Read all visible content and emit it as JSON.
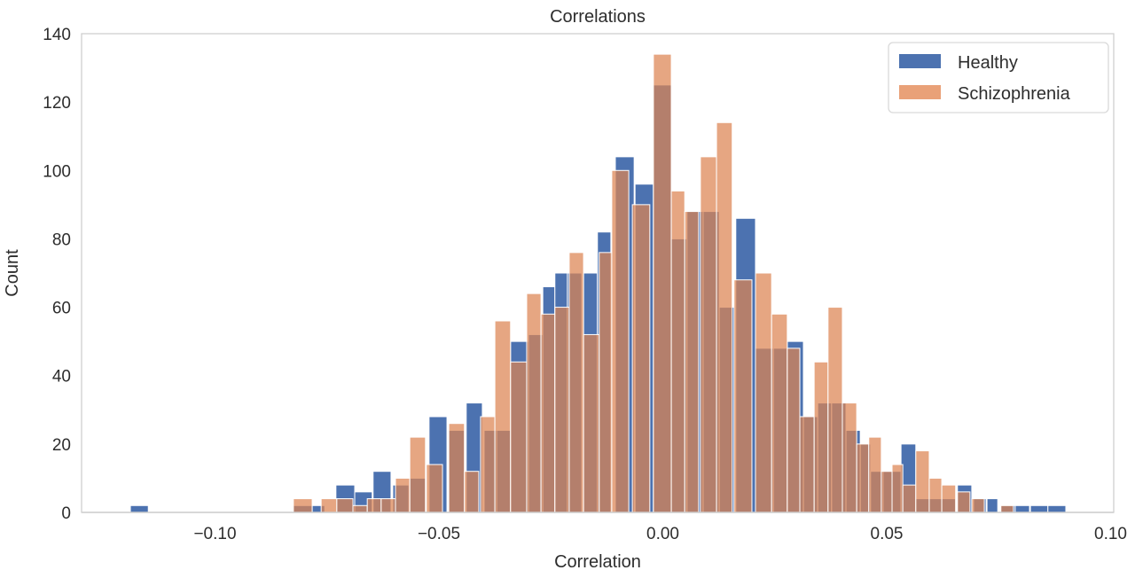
{
  "title": "Correlations",
  "chart_data": {
    "type": "histogram-overlay",
    "title": "Correlations",
    "xlabel": "Correlation",
    "ylabel": "Count",
    "xlim": [
      -0.1298,
      0.1007
    ],
    "ylim": [
      0,
      140
    ],
    "grid": false,
    "xticks": {
      "values": [
        -0.1,
        -0.05,
        0.0,
        0.05,
        0.1
      ],
      "labels": [
        "−0.10",
        "−0.05",
        "0.00",
        "0.05",
        "0.10"
      ]
    },
    "yticks": {
      "values": [
        0,
        20,
        40,
        60,
        80,
        100,
        120,
        140
      ],
      "labels": [
        "0",
        "20",
        "40",
        "60",
        "80",
        "100",
        "120",
        "140"
      ]
    },
    "colors": {
      "healthy": "#4C72B0",
      "schizophrenia": "#DD8452",
      "schizophrenia_legend": "#E9A178",
      "spine": "#cfcfcf",
      "text": "#2d2d2d",
      "bar_edge": "#ffffff"
    },
    "legend": {
      "position": "upper right",
      "entries": [
        {
          "label": "Healthy",
          "color": "#4C72B0"
        },
        {
          "label": "Schizophrenia",
          "color": "#E9A178"
        }
      ]
    },
    "series": [
      {
        "name": "Healthy",
        "color": "#4C72B0",
        "opacity": 1,
        "bins": [
          [
            -0.1189,
            -0.1149,
            2
          ],
          [
            -0.0825,
            -0.0783,
            2
          ],
          [
            -0.0783,
            -0.0755,
            2
          ],
          [
            -0.073,
            -0.0688,
            8
          ],
          [
            -0.0688,
            -0.0649,
            6
          ],
          [
            -0.0647,
            -0.0607,
            12
          ],
          [
            -0.0603,
            -0.0567,
            8
          ],
          [
            -0.0565,
            -0.053,
            10
          ],
          [
            -0.0522,
            -0.0482,
            28
          ],
          [
            -0.0478,
            -0.0443,
            24
          ],
          [
            -0.0439,
            -0.0403,
            32
          ],
          [
            -0.0399,
            -0.0371,
            24
          ],
          [
            -0.0371,
            -0.034,
            24
          ],
          [
            -0.034,
            -0.03,
            50
          ],
          [
            -0.03,
            -0.0268,
            52
          ],
          [
            -0.0268,
            -0.0241,
            66
          ],
          [
            -0.0241,
            -0.0213,
            70
          ],
          [
            -0.0213,
            -0.0181,
            70
          ],
          [
            -0.0177,
            -0.0146,
            70
          ],
          [
            -0.0146,
            -0.0116,
            82
          ],
          [
            -0.0106,
            -0.0064,
            104
          ],
          [
            -0.0062,
            -0.0021,
            96
          ],
          [
            -0.0021,
            0.0019,
            125
          ],
          [
            0.0019,
            0.0054,
            80
          ],
          [
            0.0054,
            0.009,
            88
          ],
          [
            0.009,
            0.0126,
            88
          ],
          [
            0.0126,
            0.0161,
            60
          ],
          [
            0.0163,
            0.0207,
            86
          ],
          [
            0.0207,
            0.0247,
            48
          ],
          [
            0.0247,
            0.0278,
            48
          ],
          [
            0.0278,
            0.0314,
            50
          ],
          [
            0.0314,
            0.0346,
            28
          ],
          [
            0.0346,
            0.0377,
            32
          ],
          [
            0.0377,
            0.0409,
            32
          ],
          [
            0.0409,
            0.0441,
            24
          ],
          [
            0.0441,
            0.0464,
            20
          ],
          [
            0.0464,
            0.0492,
            12
          ],
          [
            0.0492,
            0.0532,
            12
          ],
          [
            0.0532,
            0.0565,
            20
          ],
          [
            0.0565,
            0.0595,
            4
          ],
          [
            0.0595,
            0.0623,
            4
          ],
          [
            0.0623,
            0.0654,
            4
          ],
          [
            0.0658,
            0.069,
            8
          ],
          [
            0.0694,
            0.0722,
            4
          ],
          [
            0.0724,
            0.0748,
            4
          ],
          [
            0.0755,
            0.0787,
            2
          ],
          [
            0.0787,
            0.0819,
            2
          ],
          [
            0.0821,
            0.086,
            2
          ],
          [
            0.086,
            0.09,
            2
          ]
        ]
      },
      {
        "name": "Schizophrenia",
        "color": "#DD8452",
        "opacity": 0.72,
        "bins": [
          [
            -0.0825,
            -0.0783,
            4
          ],
          [
            -0.0763,
            -0.0728,
            4
          ],
          [
            -0.0728,
            -0.0692,
            4
          ],
          [
            -0.0692,
            -0.066,
            2
          ],
          [
            -0.066,
            -0.0629,
            4
          ],
          [
            -0.0629,
            -0.0597,
            4
          ],
          [
            -0.0597,
            -0.0565,
            10
          ],
          [
            -0.0565,
            -0.053,
            22
          ],
          [
            -0.0528,
            -0.0492,
            14
          ],
          [
            -0.0478,
            -0.0443,
            26
          ],
          [
            -0.0443,
            -0.0411,
            12
          ],
          [
            -0.0407,
            -0.0375,
            28
          ],
          [
            -0.0375,
            -0.034,
            56
          ],
          [
            -0.034,
            -0.0304,
            44
          ],
          [
            -0.0304,
            -0.0272,
            64
          ],
          [
            -0.0272,
            -0.0241,
            58
          ],
          [
            -0.0241,
            -0.0209,
            60
          ],
          [
            -0.0209,
            -0.0177,
            76
          ],
          [
            -0.0177,
            -0.0142,
            52
          ],
          [
            -0.0142,
            -0.0114,
            76
          ],
          [
            -0.0114,
            -0.0076,
            100
          ],
          [
            -0.0068,
            -0.0029,
            90
          ],
          [
            -0.0021,
            0.0019,
            134
          ],
          [
            0.0019,
            0.0049,
            94
          ],
          [
            0.0049,
            0.008,
            88
          ],
          [
            0.0084,
            0.012,
            104
          ],
          [
            0.012,
            0.0155,
            114
          ],
          [
            0.0159,
            0.0199,
            68
          ],
          [
            0.0207,
            0.0243,
            70
          ],
          [
            0.0243,
            0.0278,
            58
          ],
          [
            0.0278,
            0.0306,
            48
          ],
          [
            0.0306,
            0.0338,
            28
          ],
          [
            0.0338,
            0.0369,
            44
          ],
          [
            0.0369,
            0.0401,
            60
          ],
          [
            0.0401,
            0.0433,
            32
          ],
          [
            0.0433,
            0.046,
            20
          ],
          [
            0.046,
            0.0488,
            22
          ],
          [
            0.0488,
            0.0512,
            12
          ],
          [
            0.0512,
            0.0536,
            14
          ],
          [
            0.0536,
            0.0565,
            8
          ],
          [
            0.0565,
            0.0595,
            18
          ],
          [
            0.0595,
            0.0623,
            10
          ],
          [
            0.0623,
            0.0654,
            8
          ],
          [
            0.0658,
            0.0686,
            6
          ],
          [
            0.069,
            0.0718,
            4
          ],
          [
            0.0755,
            0.0783,
            2
          ]
        ]
      }
    ]
  }
}
